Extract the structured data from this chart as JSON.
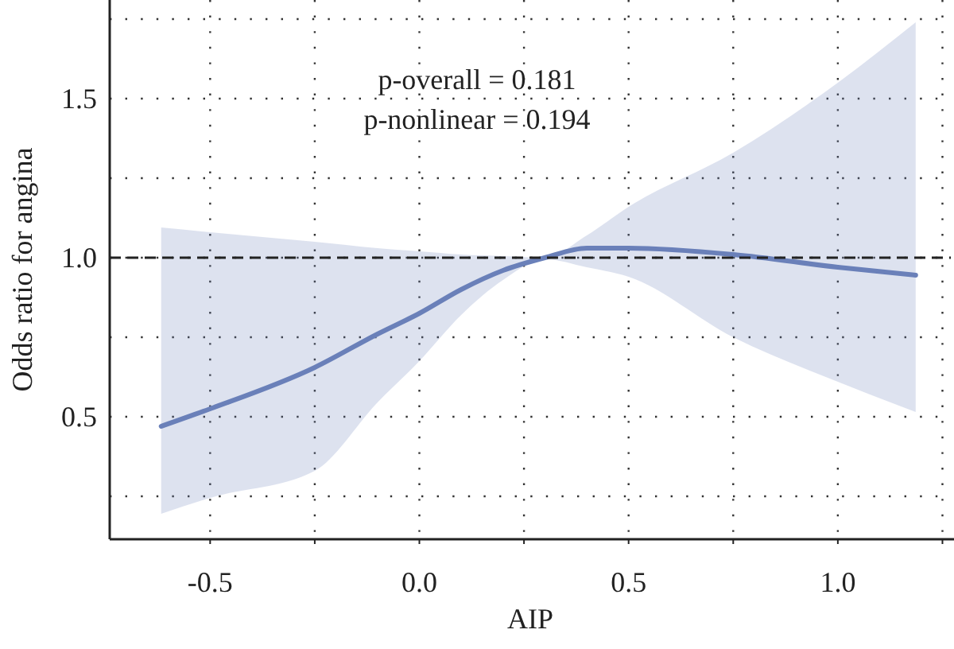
{
  "chart_data": {
    "type": "line",
    "xlabel": "AIP",
    "ylabel": "Odds ratio for angina",
    "x": [
      -0.617,
      -0.5,
      -0.25,
      -0.1,
      0,
      0.1,
      0.2,
      0.3,
      0.4,
      0.5,
      0.75,
      1.0,
      1.186
    ],
    "series": [
      {
        "color": "#6a80b9",
        "values": [
          0.47,
          0.525,
          0.655,
          0.76,
          0.825,
          0.9,
          0.96,
          1.0,
          1.03,
          1.03,
          1.01,
          0.97,
          0.945
        ],
        "lower": [
          0.195,
          0.245,
          0.33,
          0.545,
          0.675,
          0.82,
          0.93,
          0.995,
          0.97,
          0.94,
          0.75,
          0.61,
          0.515
        ],
        "upper": [
          1.095,
          1.08,
          1.05,
          1.03,
          1.02,
          1.01,
          1.005,
          1.0,
          1.07,
          1.16,
          1.33,
          1.55,
          1.74
        ]
      }
    ],
    "xlim": [
      -0.74,
      1.27
    ],
    "ylim": [
      0.115,
      1.81
    ],
    "xticks": [
      -0.5,
      {
        "value": -0.25,
        "label": null
      },
      {
        "value": 0,
        "label": "0.0"
      },
      {
        "value": 0.25,
        "label": null
      },
      0.5,
      {
        "value": 0.75,
        "label": null
      },
      {
        "value": 1,
        "label": "1.0"
      },
      {
        "value": 1.25,
        "label": null
      }
    ],
    "yticks": [
      {
        "value": 0.25,
        "label": null
      },
      0.5,
      {
        "value": 0.75,
        "label": null
      },
      {
        "value": 1,
        "label": "1.0"
      },
      {
        "value": 1.25,
        "label": null
      },
      1.5,
      {
        "value": 1.75,
        "label": null
      }
    ],
    "grid": true,
    "marker": "none",
    "line_style": "solid",
    "ref_lines": [
      {
        "axis": "y",
        "value": 1,
        "line_style": "dashed",
        "color": "#222222"
      }
    ],
    "annotations": [
      "p-overall = 0.181",
      "p-nonlinear = 0.194"
    ]
  }
}
